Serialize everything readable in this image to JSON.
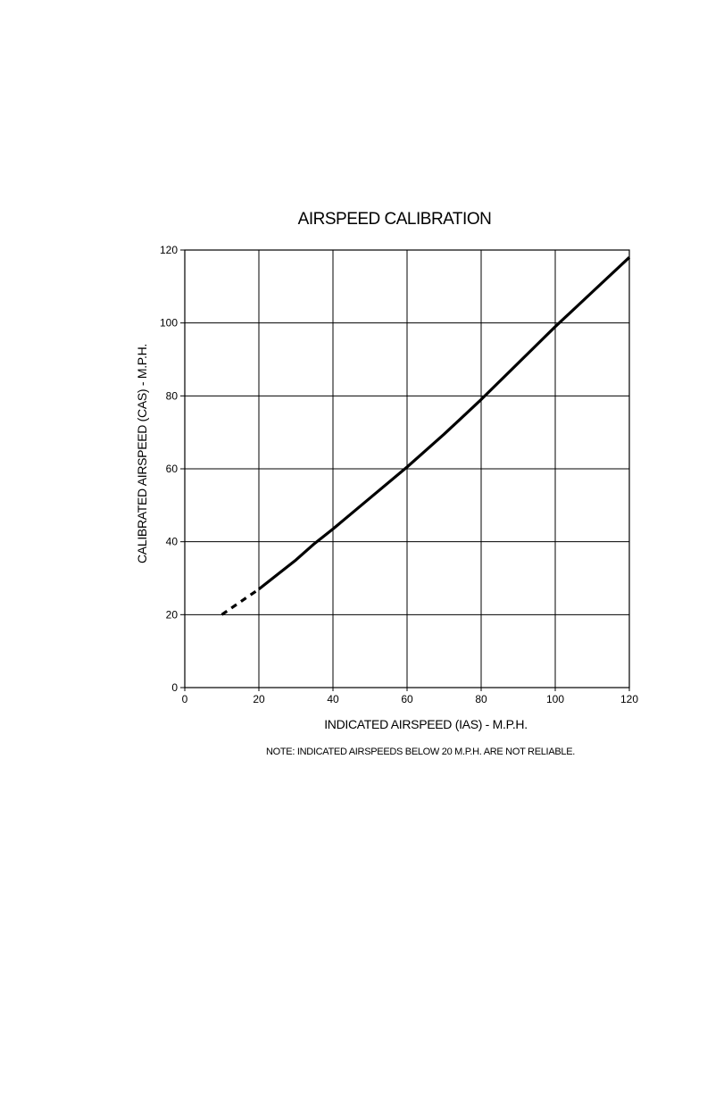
{
  "chart_data": {
    "type": "line",
    "title": "AIRSPEED CALIBRATION",
    "xlabel": "INDICATED AIRSPEED (IAS) - M.P.H.",
    "ylabel": "CALIBRATED AIRSPEED (CAS) - M.P.H.",
    "note": "NOTE:  INDICATED AIRSPEEDS BELOW 20 M.P.H. ARE NOT RELIABLE.",
    "xlim": [
      0,
      120
    ],
    "ylim": [
      0,
      120
    ],
    "x_ticks": [
      "0",
      "20",
      "40",
      "60",
      "80",
      "100",
      "120"
    ],
    "y_ticks": [
      "0",
      "20",
      "40",
      "60",
      "80",
      "100",
      "120"
    ],
    "grid": true,
    "series": [
      {
        "style": "dashed",
        "x": [
          10,
          20
        ],
        "y": [
          20,
          27
        ]
      },
      {
        "style": "solid",
        "x": [
          20,
          25,
          30,
          35,
          40,
          50,
          60,
          70,
          80,
          90,
          100,
          110,
          120
        ],
        "y": [
          27,
          31,
          35,
          39.5,
          43.5,
          52,
          60.5,
          69.5,
          79,
          89,
          99,
          108.5,
          118
        ]
      }
    ]
  }
}
